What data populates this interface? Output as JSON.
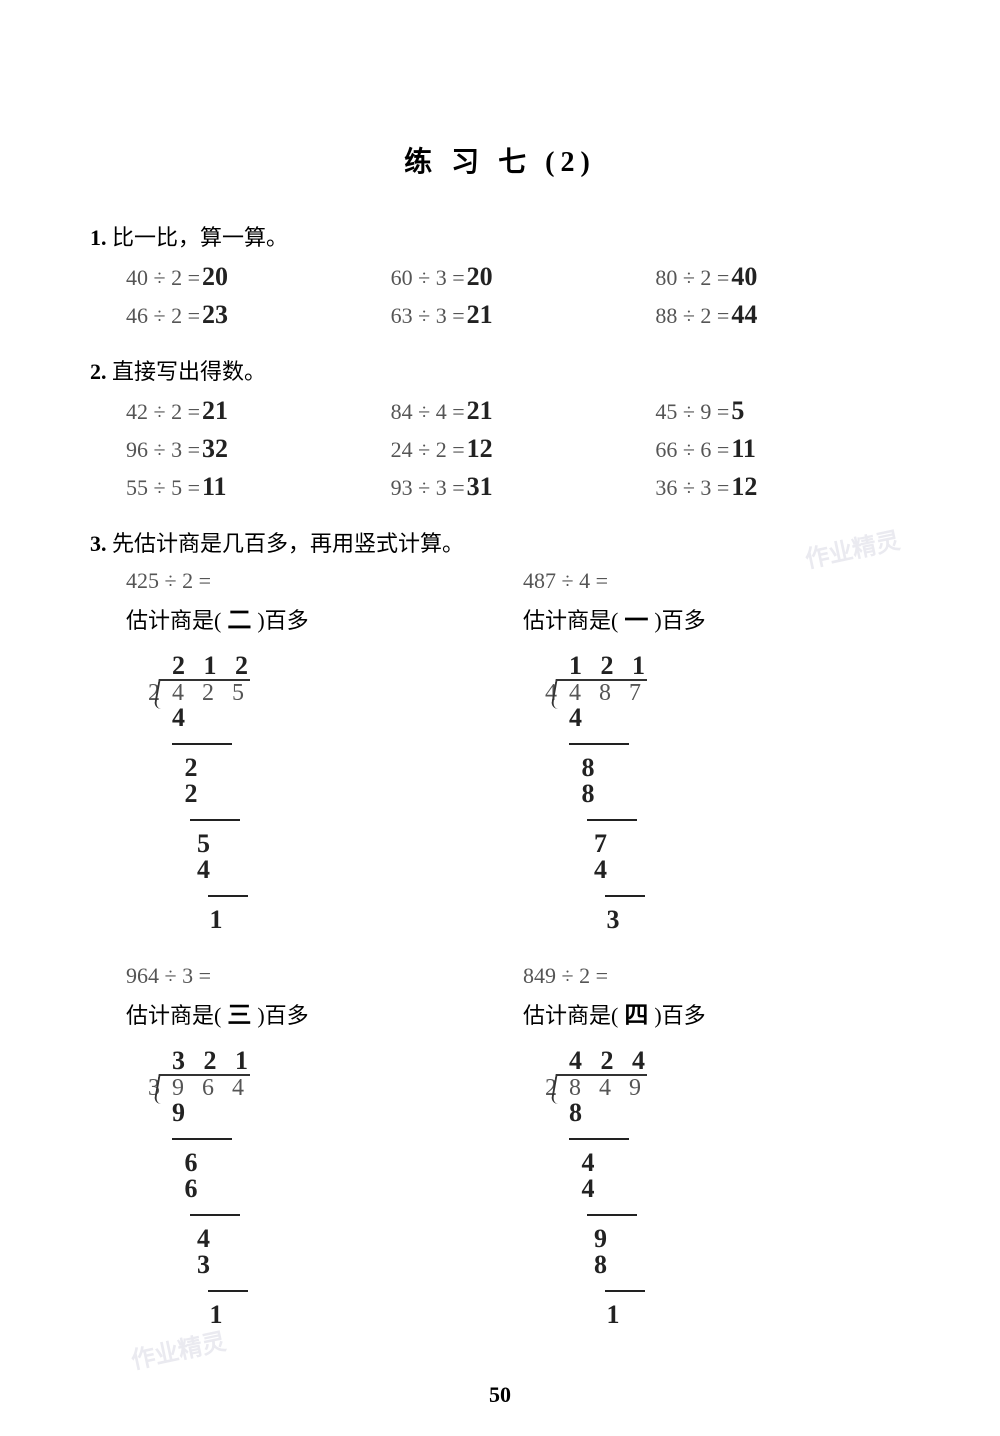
{
  "title": "练 习 七 (2)",
  "page_number": "50",
  "watermark": "作业精灵",
  "colors": {
    "printed": "#555555",
    "handwritten": "#222222",
    "background": "#ffffff"
  },
  "fonts": {
    "printed_size_pt": 22,
    "title_size_pt": 28,
    "hand_size_pt": 26
  },
  "q1": {
    "number": "1.",
    "prompt": "比一比，算一算。",
    "rows": [
      [
        {
          "expr": "40 ÷ 2 =",
          "ans": "20"
        },
        {
          "expr": "60 ÷ 3 =",
          "ans": "20"
        },
        {
          "expr": "80 ÷ 2 =",
          "ans": "40"
        }
      ],
      [
        {
          "expr": "46 ÷ 2 =",
          "ans": "23"
        },
        {
          "expr": "63 ÷ 3 =",
          "ans": "21"
        },
        {
          "expr": "88 ÷ 2 =",
          "ans": "44"
        }
      ]
    ]
  },
  "q2": {
    "number": "2.",
    "prompt": "直接写出得数。",
    "rows": [
      [
        {
          "expr": "42 ÷ 2 =",
          "ans": "21"
        },
        {
          "expr": "84 ÷ 4 =",
          "ans": "21"
        },
        {
          "expr": "45 ÷ 9 =",
          "ans": "5"
        }
      ],
      [
        {
          "expr": "96 ÷ 3 =",
          "ans": "32"
        },
        {
          "expr": "24 ÷ 2 =",
          "ans": "12"
        },
        {
          "expr": "66 ÷ 6 =",
          "ans": "11"
        }
      ],
      [
        {
          "expr": "55 ÷ 5 =",
          "ans": "11"
        },
        {
          "expr": "93 ÷ 3 =",
          "ans": "31"
        },
        {
          "expr": "36 ÷ 3 =",
          "ans": "12"
        }
      ]
    ]
  },
  "q3": {
    "number": "3.",
    "prompt": "先估计商是几百多，再用竖式计算。",
    "estimate_prefix": "估计商是(",
    "estimate_suffix": ")百多",
    "items": [
      {
        "expr": "425 ÷ 2 =",
        "estimate_ans": "二",
        "divisor": "2",
        "dividend": "4 2 5",
        "quotient": "2 1 2",
        "work": [
          "4",
          "—",
          " 2",
          " 2",
          " —",
          "  5",
          "  4",
          "  —",
          "   1"
        ]
      },
      {
        "expr": "487 ÷ 4 =",
        "estimate_ans": "一",
        "divisor": "4",
        "dividend": "4 8 7",
        "quotient": "1 2 1",
        "work": [
          "4",
          "—",
          " 8",
          " 8",
          " —",
          "  7",
          "  4",
          "  —",
          "   3"
        ]
      },
      {
        "expr": "964 ÷ 3 =",
        "estimate_ans": "三",
        "divisor": "3",
        "dividend": "9 6 4",
        "quotient": "3 2 1",
        "work": [
          "9",
          "—",
          " 6",
          " 6",
          " —",
          "  4",
          "  3",
          "  —",
          "   1"
        ]
      },
      {
        "expr": "849 ÷ 2 =",
        "estimate_ans": "四",
        "divisor": "2",
        "dividend": "8 4 9",
        "quotient": "4 2 4",
        "work": [
          "8",
          "—",
          " 4",
          " 4",
          " —",
          "  9",
          "  8",
          "  —",
          "   1"
        ]
      }
    ]
  }
}
